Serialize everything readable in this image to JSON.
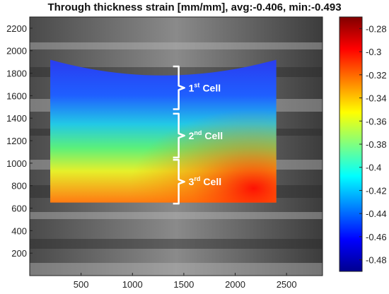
{
  "chart_data": {
    "type": "heatmap",
    "title": "Through thickness strain [mm/mm], avg:-0.406, min:-0.493",
    "xlim": [
      0,
      2850
    ],
    "ylim": [
      0,
      2300
    ],
    "x_ticks": [
      500,
      1000,
      1500,
      2000,
      2500
    ],
    "y_ticks": [
      200,
      400,
      600,
      800,
      1000,
      1200,
      1400,
      1600,
      1800,
      2000,
      2200
    ],
    "colorbar": {
      "range": [
        -0.49,
        -0.27
      ],
      "ticks": [
        -0.28,
        -0.3,
        -0.32,
        -0.34,
        -0.36,
        -0.38,
        -0.4,
        -0.42,
        -0.44,
        -0.46,
        -0.48
      ],
      "tick_labels": [
        "-0.28",
        "-0.3",
        "-0.32",
        "-0.34",
        "-0.36",
        "-0.38",
        "-0.4",
        "-0.42",
        "-0.44",
        "-0.46",
        "-0.48"
      ],
      "colormap": "jet"
    },
    "strain_field": {
      "x_extent": [
        200,
        2400
      ],
      "y_bottom": 650,
      "y_top_left": 1920,
      "y_top_center": 1780,
      "y_top_right": 1920
    },
    "annotations": [
      {
        "label": "1",
        "sup": "st",
        "text": "Cell",
        "y_from": 1480,
        "y_to": 1860
      },
      {
        "label": "2",
        "sup": "nd",
        "text": "Cell",
        "y_from": 1050,
        "y_to": 1440
      },
      {
        "label": "3",
        "sup": "rd",
        "text": "Cell",
        "y_from": 640,
        "y_to": 1030
      }
    ]
  }
}
